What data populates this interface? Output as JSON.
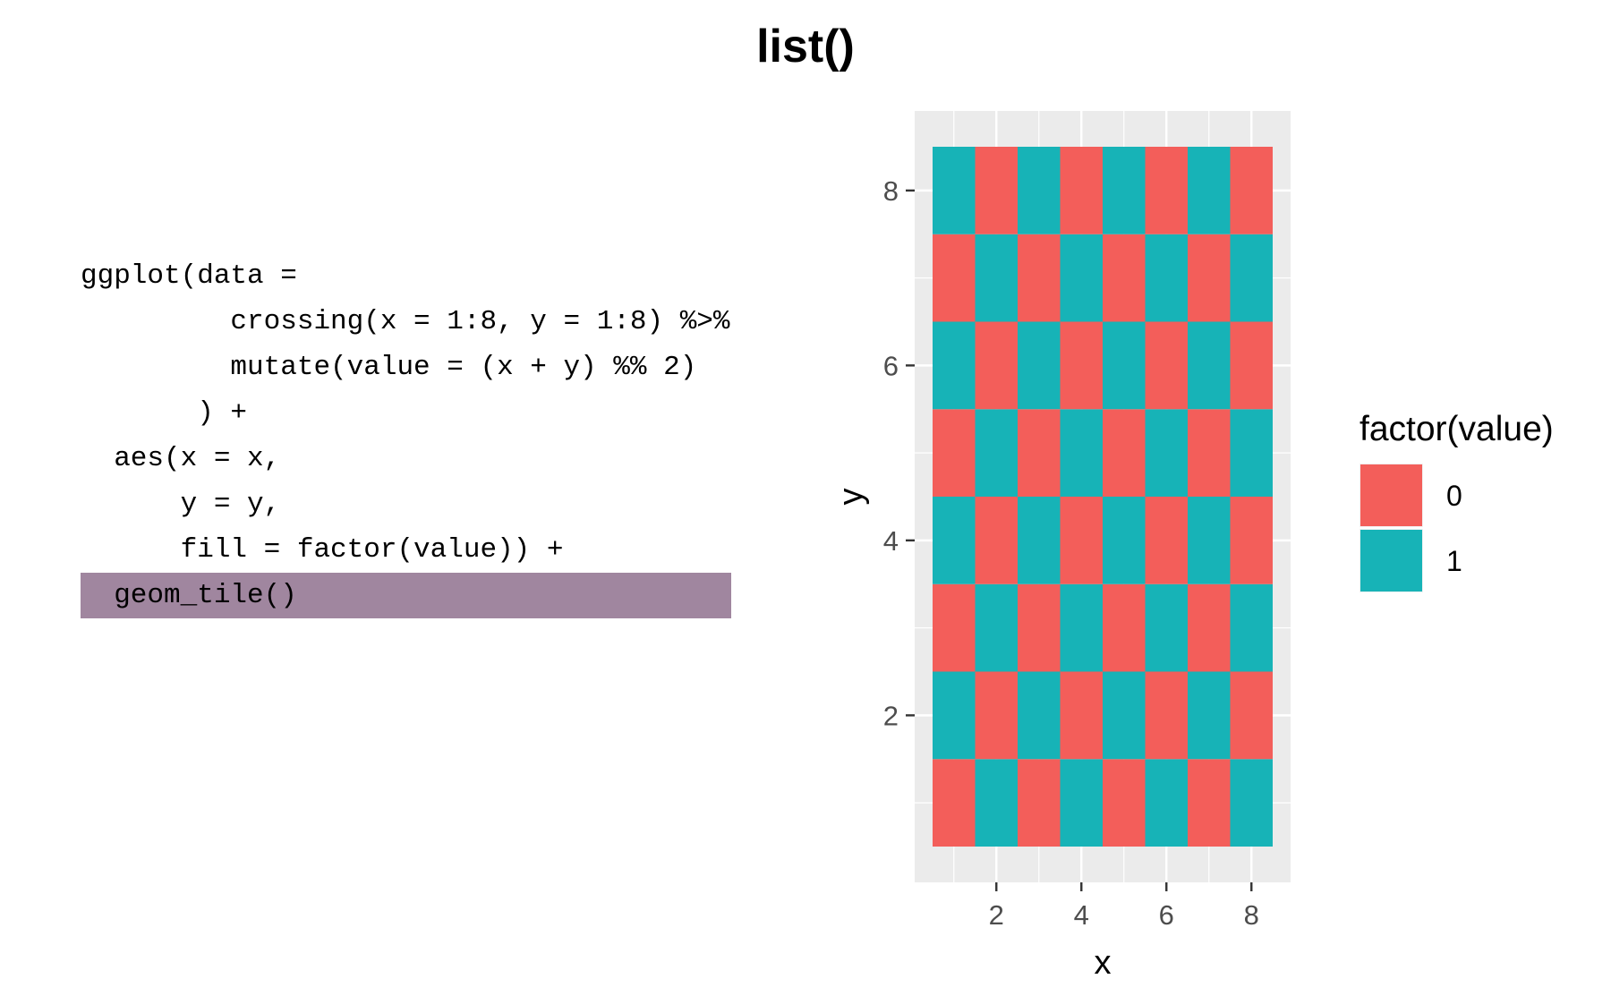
{
  "title": "list()",
  "code_lines": [
    {
      "text": "ggplot(data =",
      "highlight": false
    },
    {
      "text": "         crossing(x = 1:8, y = 1:8) %>%",
      "highlight": false
    },
    {
      "text": "         mutate(value = (x + y) %% 2)",
      "highlight": false
    },
    {
      "text": "       ) +",
      "highlight": false
    },
    {
      "text": "  aes(x = x,",
      "highlight": false
    },
    {
      "text": "      y = y,",
      "highlight": false
    },
    {
      "text": "      fill = factor(value)) +",
      "highlight": false
    },
    {
      "text": "  geom_tile()",
      "highlight": true
    }
  ],
  "chart_data": {
    "type": "heatmap",
    "title": "",
    "xlabel": "x",
    "ylabel": "y",
    "xlim": [
      0.5,
      8.5
    ],
    "ylim": [
      0.5,
      8.5
    ],
    "x_ticks": [
      2,
      4,
      6,
      8
    ],
    "y_ticks": [
      2,
      4,
      6,
      8
    ],
    "grid": true,
    "legend_position": "right",
    "legend_title": "factor(value)",
    "legend": [
      {
        "label": "0",
        "color": "#F35E5A"
      },
      {
        "label": "1",
        "color": "#17B3B7"
      }
    ],
    "x": [
      1,
      2,
      3,
      4,
      5,
      6,
      7,
      8
    ],
    "y": [
      1,
      2,
      3,
      4,
      5,
      6,
      7,
      8
    ],
    "value_rule": "value = (x + y) mod 2",
    "values": [
      [
        0,
        1,
        0,
        1,
        0,
        1,
        0,
        1
      ],
      [
        1,
        0,
        1,
        0,
        1,
        0,
        1,
        0
      ],
      [
        0,
        1,
        0,
        1,
        0,
        1,
        0,
        1
      ],
      [
        1,
        0,
        1,
        0,
        1,
        0,
        1,
        0
      ],
      [
        0,
        1,
        0,
        1,
        0,
        1,
        0,
        1
      ],
      [
        1,
        0,
        1,
        0,
        1,
        0,
        1,
        0
      ],
      [
        0,
        1,
        0,
        1,
        0,
        1,
        0,
        1
      ],
      [
        1,
        0,
        1,
        0,
        1,
        0,
        1,
        0
      ]
    ]
  }
}
